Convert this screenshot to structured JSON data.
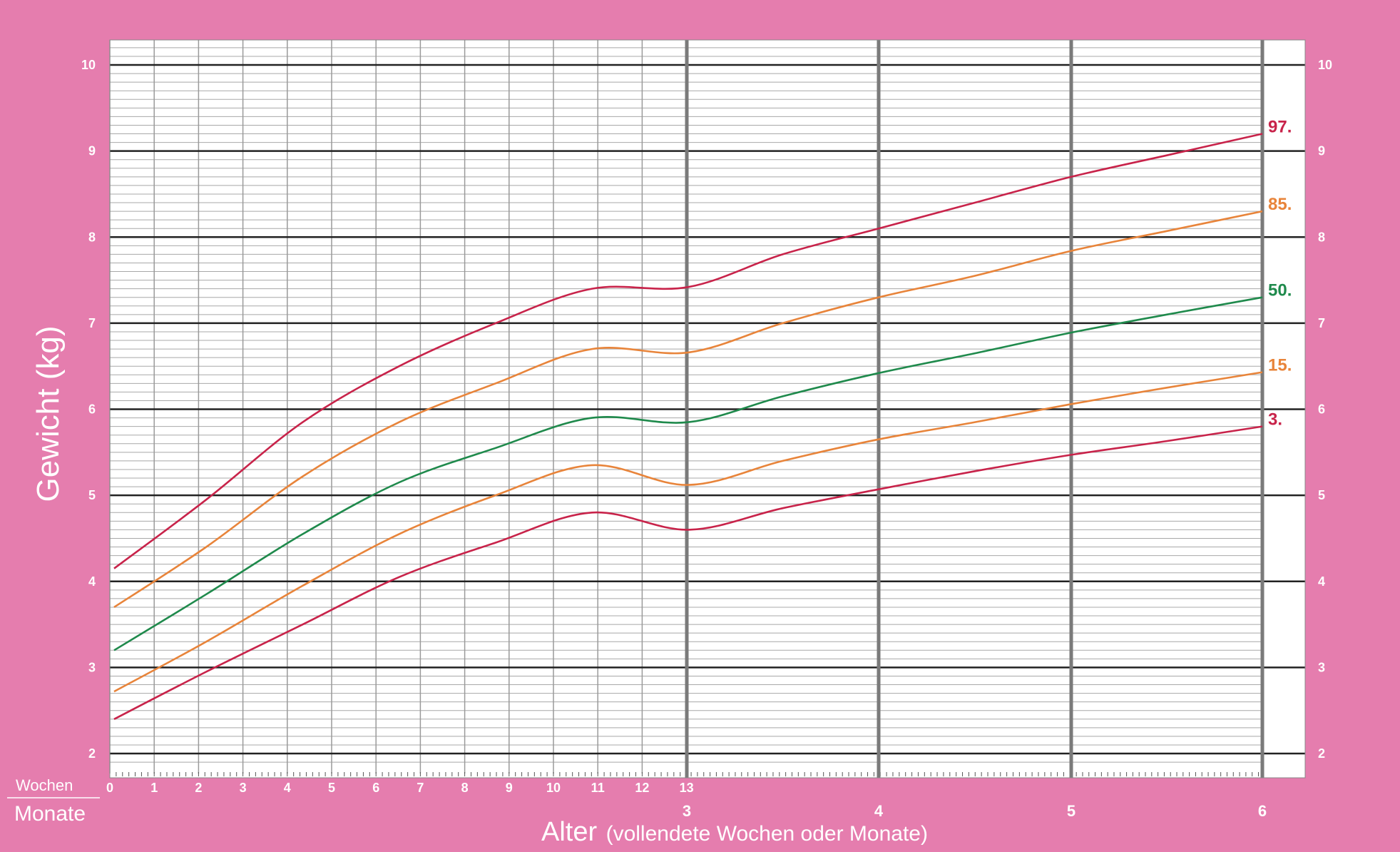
{
  "colors": {
    "background": "#e57dae",
    "plot_background": "#ffffff",
    "p3": "#c8234a",
    "p15": "#e8843a",
    "p50": "#1f8a4c",
    "p85": "#e8843a",
    "p97": "#c8234a"
  },
  "labels": {
    "wochen": "Wochen",
    "monate": "Monate",
    "xlabel_main": "Alter",
    "xlabel_sub": "(vollendete Wochen oder Monate)"
  },
  "chart_data": {
    "type": "line",
    "title": "",
    "ylabel": "Gewicht (kg)",
    "xlabel": "Alter (vollendete Wochen oder Monate)",
    "x_unit": "months",
    "xlim": [
      0,
      6
    ],
    "ylim": [
      1.7,
      10.3
    ],
    "grid": true,
    "y_ticks": [
      "2",
      "3",
      "4",
      "5",
      "6",
      "7",
      "8",
      "9",
      "10"
    ],
    "week_ticks": [
      "0",
      "1",
      "2",
      "3",
      "4",
      "5",
      "6",
      "7",
      "8",
      "9",
      "10",
      "11",
      "12",
      "13"
    ],
    "month_ticks": [
      "3",
      "4",
      "5",
      "6"
    ],
    "x": [
      0,
      0.5,
      1,
      1.5,
      2,
      2.5,
      3,
      3.5,
      4,
      4.5,
      5,
      5.5,
      6
    ],
    "series": [
      {
        "name": "3.",
        "color_key": "p3",
        "values": [
          2.4,
          2.95,
          3.5,
          4.05,
          4.45,
          4.8,
          4.6,
          4.85,
          5.07,
          5.28,
          5.47,
          5.63,
          5.8
        ]
      },
      {
        "name": "15.",
        "color_key": "p15",
        "values": [
          2.72,
          3.3,
          3.95,
          4.55,
          5.0,
          5.35,
          5.12,
          5.4,
          5.65,
          5.85,
          6.06,
          6.25,
          6.43
        ]
      },
      {
        "name": "50.",
        "color_key": "p50",
        "values": [
          3.2,
          3.85,
          4.55,
          5.15,
          5.55,
          5.9,
          5.85,
          6.15,
          6.42,
          6.65,
          6.89,
          7.1,
          7.3
        ]
      },
      {
        "name": "85.",
        "color_key": "p85",
        "values": [
          3.7,
          4.4,
          5.22,
          5.85,
          6.3,
          6.7,
          6.66,
          7.0,
          7.3,
          7.55,
          7.84,
          8.07,
          8.3
        ]
      },
      {
        "name": "97.",
        "color_key": "p97",
        "values": [
          4.15,
          4.95,
          5.85,
          6.5,
          7.0,
          7.4,
          7.42,
          7.8,
          8.1,
          8.4,
          8.7,
          8.95,
          9.2
        ]
      }
    ]
  }
}
